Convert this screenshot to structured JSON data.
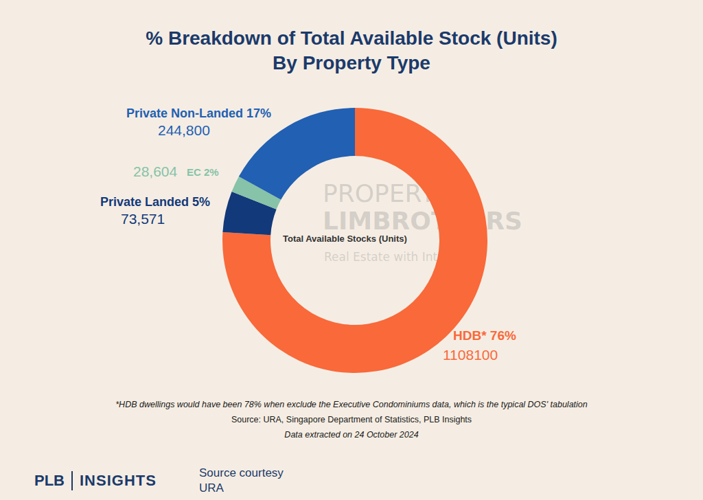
{
  "chart_data": {
    "type": "pie",
    "title": "% Breakdown of Total Available Stock (Units)",
    "subtitle": "By Property Type",
    "categories": [
      "HDB*",
      "Private Landed",
      "EC",
      "Private Non-Landed"
    ],
    "values": [
      76,
      5,
      2,
      17
    ],
    "value_labels": [
      "76%",
      "5%",
      "2%",
      "17%"
    ],
    "unit_labels": [
      "1108100",
      "73,571",
      "28,604",
      "244,800"
    ],
    "colors": [
      "#f9693a",
      "#12397a",
      "#86c3a8",
      "#2160b3"
    ],
    "data_labels": true,
    "center_label": "Total Available Stocks (Units)",
    "annotations": [
      "*HDB dwellings would have been 78% when exclude the Executive Condominiums data, which is the typical DOS' tabulation",
      "Source: URA, Singapore Department of Statistics, PLB Insights",
      "Data extracted on 24 October 2024"
    ],
    "watermark": [
      "PROPERTY",
      "LIMBROTHERS",
      "Real Estate with Integrity"
    ],
    "footer": {
      "brand": [
        "PLB",
        "INSIGHTS"
      ],
      "source_caption": "Source courtesy",
      "source_name": "URA"
    }
  }
}
